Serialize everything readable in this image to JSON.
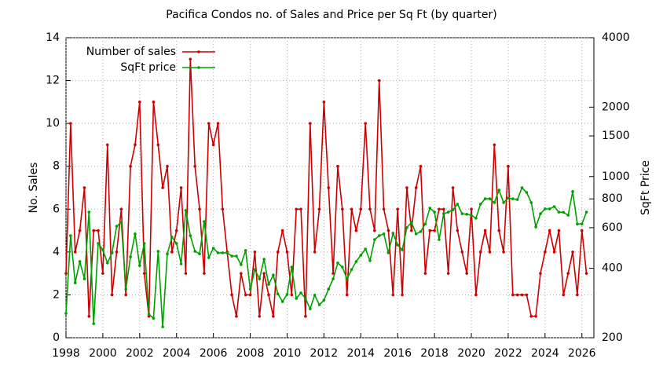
{
  "chart_data": {
    "type": "line",
    "title": "Pacifica Condos no. of Sales and Price per Sq Ft (by quarter)",
    "ylabel": "No. Sales",
    "y2label": "SqFt Price",
    "x": [
      1998,
      1998.25,
      1998.5,
      1998.75,
      1999,
      1999.25,
      1999.5,
      1999.75,
      2000,
      2000.25,
      2000.5,
      2000.75,
      2001,
      2001.25,
      2001.5,
      2001.75,
      2002,
      2002.25,
      2002.5,
      2002.75,
      2003,
      2003.25,
      2003.5,
      2003.75,
      2004,
      2004.25,
      2004.5,
      2004.75,
      2005,
      2005.25,
      2005.5,
      2005.75,
      2006,
      2006.25,
      2006.5,
      2006.75,
      2007,
      2007.25,
      2007.5,
      2007.75,
      2008,
      2008.25,
      2008.5,
      2008.75,
      2009,
      2009.25,
      2009.5,
      2009.75,
      2010,
      2010.25,
      2010.5,
      2010.75,
      2011,
      2011.25,
      2011.5,
      2011.75,
      2012,
      2012.25,
      2012.5,
      2012.75,
      2013,
      2013.25,
      2013.5,
      2013.75,
      2014,
      2014.25,
      2014.5,
      2014.75,
      2015,
      2015.25,
      2015.5,
      2015.75,
      2016,
      2016.25,
      2016.5,
      2016.75,
      2017,
      2017.25,
      2017.5,
      2017.75,
      2018,
      2018.25,
      2018.5,
      2018.75,
      2019,
      2019.25,
      2019.5,
      2019.75,
      2020,
      2020.25,
      2020.5,
      2020.75,
      2021,
      2021.25,
      2021.5,
      2021.75,
      2022,
      2022.25,
      2022.5,
      2022.75,
      2023,
      2023.25,
      2023.5,
      2023.75,
      2024,
      2024.25,
      2024.5,
      2024.75,
      2025,
      2025.25,
      2025.5,
      2025.75,
      2026,
      2026.25
    ],
    "series": [
      {
        "name": "Number of sales",
        "color": "#cc0000",
        "values": [
          3,
          10,
          4,
          5,
          7,
          1,
          5,
          5,
          3,
          9,
          2,
          4,
          6,
          2,
          8,
          9,
          11,
          3,
          1,
          11,
          9,
          7,
          8,
          4,
          5,
          7,
          3,
          13,
          8,
          6,
          3,
          10,
          9,
          10,
          6,
          4,
          2,
          1,
          3,
          2,
          2,
          4,
          1,
          3,
          2,
          1,
          4,
          5,
          4,
          2,
          6,
          6,
          1,
          10,
          4,
          6,
          11,
          7,
          3,
          8,
          6,
          2,
          6,
          5,
          6,
          10,
          6,
          5,
          12,
          6,
          5,
          2,
          6,
          2,
          7,
          5,
          7,
          8,
          3,
          5,
          5,
          6,
          6,
          3,
          7,
          5,
          4,
          3,
          6,
          2,
          4,
          5,
          4,
          9,
          5,
          4,
          8,
          2,
          2,
          2,
          2,
          1,
          1,
          3,
          4,
          5,
          4,
          5,
          2,
          3,
          4,
          2,
          5,
          3
        ]
      },
      {
        "name": "SqFt price",
        "color": "#00a000",
        "axis": "y2",
        "values": [
          255,
          554,
          346,
          428,
          360,
          701,
          230,
          513,
          481,
          422,
          467,
          609,
          633,
          325,
          449,
          564,
          411,
          513,
          253,
          243,
          474,
          223,
          462,
          546,
          513,
          418,
          713,
          554,
          474,
          462,
          638,
          445,
          489,
          467,
          467,
          467,
          452,
          452,
          415,
          478,
          325,
          395,
          360,
          438,
          341,
          374,
          310,
          287,
          308,
          405,
          296,
          313,
          296,
          267,
          306,
          278,
          291,
          325,
          360,
          422,
          405,
          360,
          395,
          428,
          456,
          485,
          432,
          533,
          554,
          564,
          467,
          568,
          505,
          481,
          600,
          633,
          564,
          577,
          623,
          730,
          701,
          533,
          690,
          701,
          718,
          759,
          690,
          686,
          680,
          660,
          759,
          801,
          801,
          771,
          873,
          771,
          807,
          800,
          795,
          894,
          853,
          771,
          605,
          690,
          724,
          724,
          741,
          701,
          700,
          680,
          861,
          623,
          623,
          701
        ]
      }
    ],
    "xlim": [
      1998,
      2026.65
    ],
    "xticks": [
      1998,
      2000,
      2002,
      2004,
      2006,
      2008,
      2010,
      2012,
      2014,
      2016,
      2018,
      2020,
      2022,
      2024,
      2026
    ],
    "ylim": [
      0,
      14
    ],
    "yticks": [
      0,
      2,
      4,
      6,
      8,
      10,
      12,
      14
    ],
    "y2lim": [
      200,
      4000
    ],
    "y2ticks": [
      200,
      400,
      600,
      800,
      1000,
      1500,
      2000,
      4000
    ],
    "y2log": true,
    "grid": true,
    "legend": "top-left"
  }
}
